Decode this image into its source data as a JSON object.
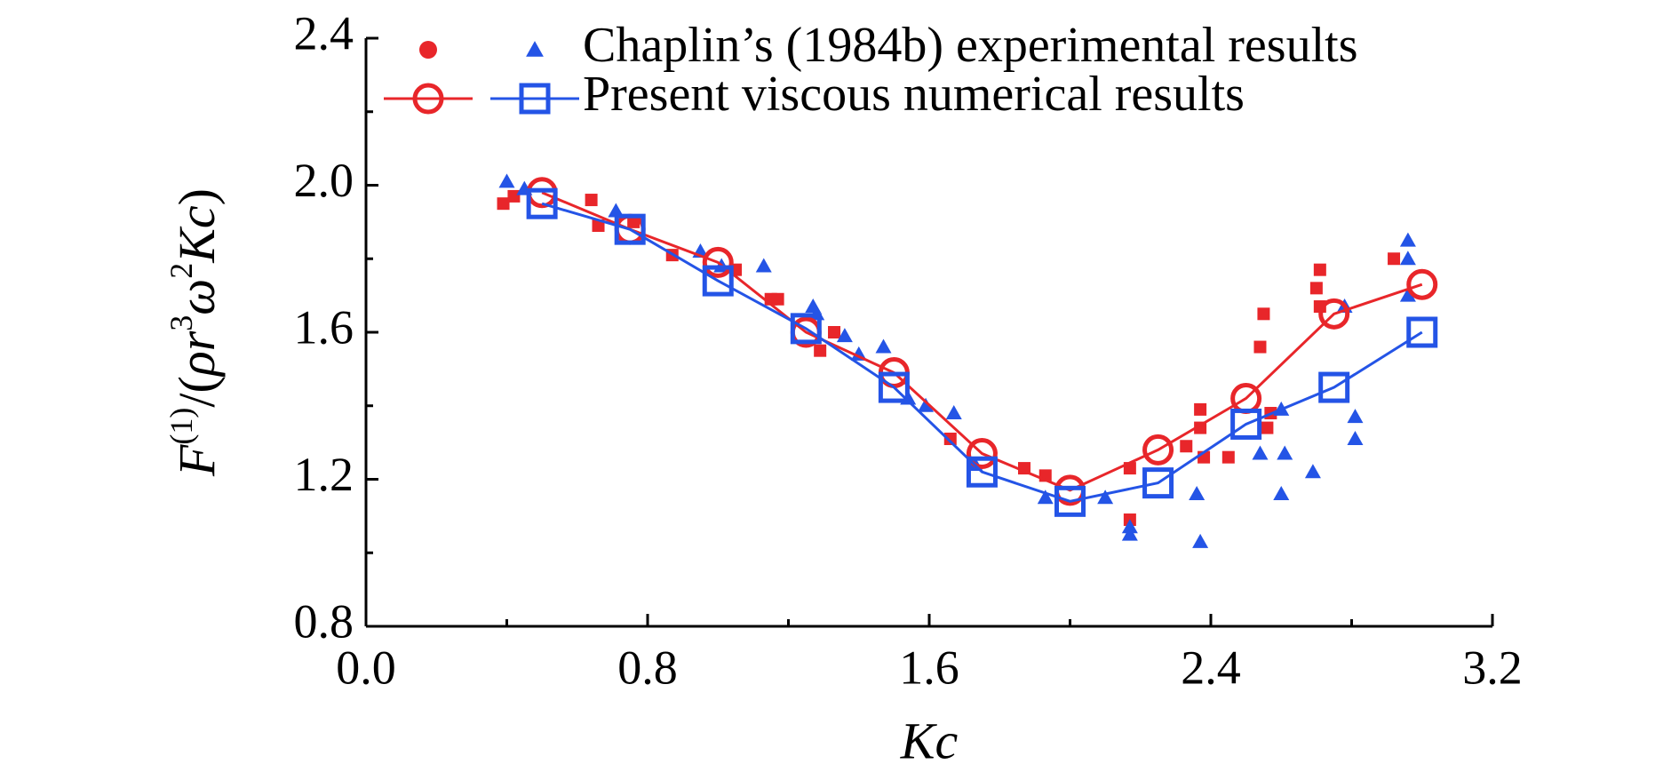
{
  "chart_data": {
    "type": "scatter-line",
    "x_label": "Kc",
    "y_label": [
      {
        "text": "F",
        "italic": true
      },
      {
        "text": "(1)",
        "sup": true
      },
      {
        "text": "/("
      },
      {
        "text": "ρr",
        "italic": true
      },
      {
        "text": "3",
        "sup": true
      },
      {
        "text": "ω",
        "italic": true
      },
      {
        "text": "2",
        "sup": true
      },
      {
        "text": "Kc",
        "italic": true
      },
      {
        "text": ")"
      }
    ],
    "xlim": [
      0,
      3.2
    ],
    "ylim": [
      0.8,
      2.4
    ],
    "xticks": [
      {
        "value": 0,
        "label": "0.0"
      },
      0.8,
      1.6,
      2.4,
      3.2
    ],
    "yticks": [
      0.8,
      1.2,
      1.6,
      {
        "value": 2,
        "label": "2.0"
      },
      2.4
    ],
    "xminor": [
      0.4,
      1.2,
      2.0,
      2.8
    ],
    "yminor": [
      1.0,
      1.4,
      1.8,
      2.2
    ],
    "legend": [
      {
        "label": "Chaplin’s (1984b) experimental results",
        "series": [
          0,
          1
        ]
      },
      {
        "label": "Present viscous numerical results",
        "series": [
          2,
          3
        ]
      }
    ],
    "series": [
      {
        "color": "#e8262a",
        "marker": "square",
        "line": false,
        "x": [
          0.39,
          0.42,
          0.64,
          0.66,
          0.76,
          0.87,
          1.05,
          1.15,
          1.17,
          1.29,
          1.33,
          1.66,
          1.87,
          1.93,
          2.17,
          2.17,
          2.33,
          2.37,
          2.37,
          2.38,
          2.45,
          2.55,
          2.54,
          2.56,
          2.57,
          2.7,
          2.71,
          2.71,
          2.92
        ],
        "values": [
          1.95,
          1.97,
          1.96,
          1.89,
          1.9,
          1.81,
          1.77,
          1.69,
          1.69,
          1.55,
          1.6,
          1.31,
          1.23,
          1.21,
          1.23,
          1.09,
          1.29,
          1.39,
          1.34,
          1.26,
          1.26,
          1.65,
          1.56,
          1.34,
          1.38,
          1.72,
          1.77,
          1.67,
          1.8
        ]
      },
      {
        "color": "#2454e6",
        "marker": "triangle",
        "line": false,
        "x": [
          0.4,
          0.45,
          0.71,
          0.95,
          1.01,
          1.13,
          1.27,
          1.28,
          1.36,
          1.4,
          1.47,
          1.54,
          1.59,
          1.67,
          1.73,
          1.93,
          2.1,
          2.17,
          2.17,
          2.36,
          2.37,
          2.54,
          2.61,
          2.6,
          2.6,
          2.69,
          2.78,
          2.81,
          2.81,
          2.96,
          2.96,
          2.96
        ],
        "values": [
          2.01,
          1.99,
          1.93,
          1.82,
          1.78,
          1.78,
          1.67,
          1.65,
          1.59,
          1.54,
          1.56,
          1.42,
          1.4,
          1.38,
          1.24,
          1.15,
          1.15,
          1.07,
          1.05,
          1.16,
          1.03,
          1.27,
          1.27,
          1.16,
          1.39,
          1.22,
          1.67,
          1.37,
          1.31,
          1.85,
          1.8,
          1.7
        ]
      },
      {
        "color": "#e8262a",
        "marker": "circle",
        "line": true,
        "x": [
          0.5,
          0.75,
          1.0,
          1.25,
          1.5,
          1.75,
          2.0,
          2.25,
          2.5,
          2.75,
          3.0
        ],
        "values": [
          1.98,
          1.88,
          1.79,
          1.6,
          1.49,
          1.27,
          1.17,
          1.28,
          1.42,
          1.65,
          1.73
        ]
      },
      {
        "color": "#2454e6",
        "marker": "open-square",
        "line": true,
        "x": [
          0.5,
          0.75,
          1.0,
          1.25,
          1.5,
          1.75,
          2.0,
          2.25,
          2.5,
          2.75,
          3.0
        ],
        "values": [
          1.95,
          1.88,
          1.74,
          1.61,
          1.45,
          1.22,
          1.14,
          1.19,
          1.35,
          1.45,
          1.6
        ]
      }
    ]
  }
}
